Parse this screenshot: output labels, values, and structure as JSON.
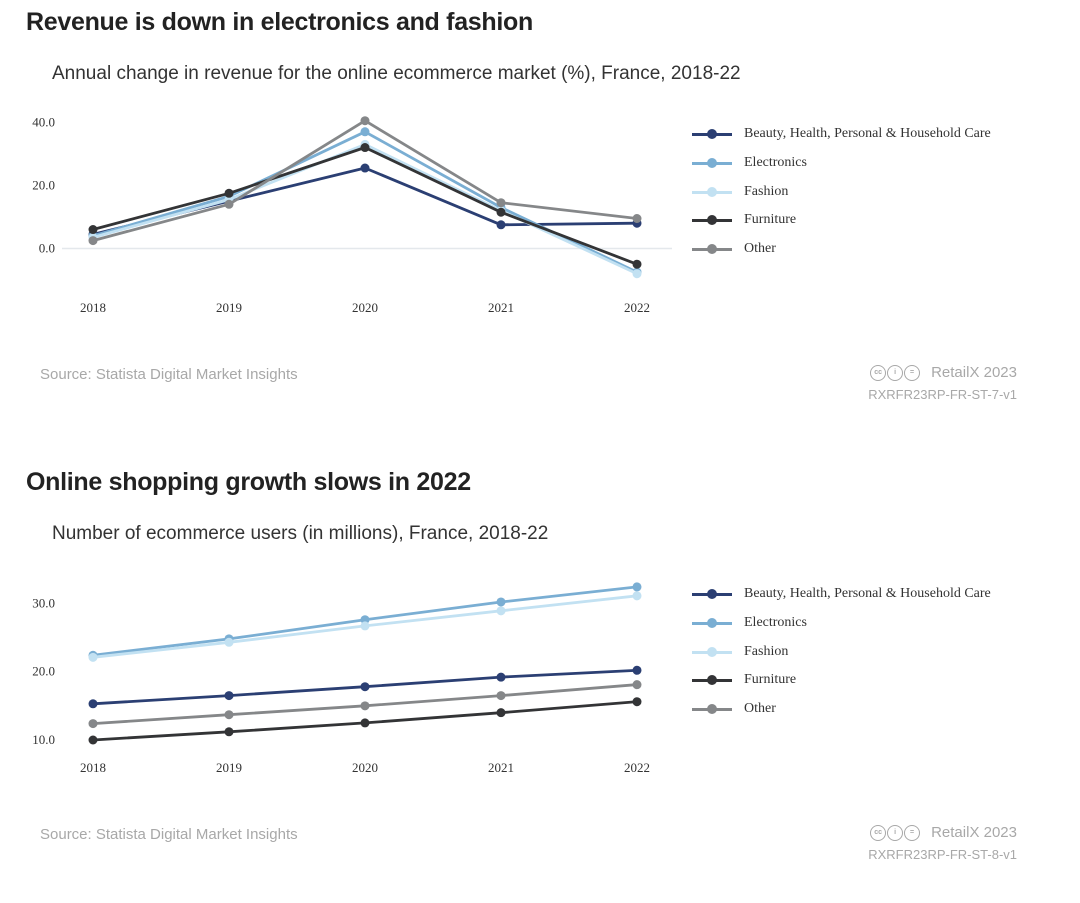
{
  "chart_data": [
    {
      "type": "line",
      "title": "Revenue is down in electronics and fashion",
      "subtitle": "Annual change in revenue for the online ecommerce market (%), France, 2018-22",
      "categories": [
        "2018",
        "2019",
        "2020",
        "2021",
        "2022"
      ],
      "ylim": [
        -10,
        42
      ],
      "yticks": [
        0,
        20,
        40
      ],
      "ytick_labels": [
        "0.0",
        "20.0",
        "40.0"
      ],
      "zero_line": true,
      "legend_position": "right",
      "series": [
        {
          "name": "Beauty, Health, Personal & Household Care",
          "color": "#2b3f73",
          "values": [
            4.5,
            15.0,
            25.5,
            7.5,
            8.0
          ]
        },
        {
          "name": "Electronics",
          "color": "#7aaed3",
          "values": [
            4.0,
            16.5,
            37.0,
            13.0,
            -7.5
          ]
        },
        {
          "name": "Fashion",
          "color": "#c2e1f2",
          "values": [
            3.5,
            15.5,
            33.0,
            12.0,
            -8.0
          ]
        },
        {
          "name": "Furniture",
          "color": "#333436",
          "values": [
            6.0,
            17.5,
            32.0,
            11.5,
            -5.0
          ]
        },
        {
          "name": "Other",
          "color": "#858789",
          "values": [
            2.5,
            14.0,
            40.5,
            14.5,
            9.5
          ]
        }
      ],
      "source": "Source: Statista Digital Market Insights",
      "brand": "RetailX 2023",
      "code": "RXRFR23RP-FR-ST-7-v1"
    },
    {
      "type": "line",
      "title": "Online shopping growth slows in 2022",
      "subtitle": "Number of ecommerce users (in millions), France, 2018-22",
      "categories": [
        "2018",
        "2019",
        "2020",
        "2021",
        "2022"
      ],
      "ylim": [
        10,
        34
      ],
      "yticks": [
        10,
        20,
        30
      ],
      "ytick_labels": [
        "10.0",
        "20.0",
        "30.0"
      ],
      "zero_line": false,
      "legend_position": "right",
      "series": [
        {
          "name": "Beauty, Health, Personal & Household Care",
          "color": "#2b3f73",
          "values": [
            15.3,
            16.5,
            17.8,
            19.2,
            20.2
          ]
        },
        {
          "name": "Electronics",
          "color": "#7aaed3",
          "values": [
            22.4,
            24.8,
            27.6,
            30.2,
            32.4
          ]
        },
        {
          "name": "Fashion",
          "color": "#c2e1f2",
          "values": [
            22.1,
            24.3,
            26.7,
            28.9,
            31.1
          ]
        },
        {
          "name": "Furniture",
          "color": "#333436",
          "values": [
            10.0,
            11.2,
            12.5,
            14.0,
            15.6
          ]
        },
        {
          "name": "Other",
          "color": "#858789",
          "values": [
            12.4,
            13.7,
            15.0,
            16.5,
            18.1
          ]
        }
      ],
      "source": "Source: Statista Digital Market Insights",
      "brand": "RetailX 2023",
      "code": "RXRFR23RP-FR-ST-8-v1"
    }
  ]
}
